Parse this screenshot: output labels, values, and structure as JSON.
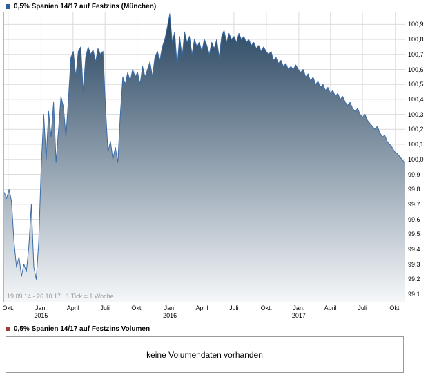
{
  "chart_data": {
    "type": "area",
    "title": "0,5% Spanien 14/17 auf Festzins (München)",
    "range_info": "19.09.14 - 26.10.17   1 Tick = 1 Woche",
    "line_color": "#3a6ca8",
    "marker_color": "#2d5e9e",
    "fill_top": "#24425e",
    "fill_bottom": "#f5f7f9",
    "grid_color": "#dcdcdc",
    "legend_position": "top-left",
    "grid": true,
    "ylim": [
      99.05,
      100.98
    ],
    "y_ticks": [
      "100,9",
      "100,8",
      "100,7",
      "100,6",
      "100,5",
      "100,4",
      "100,3",
      "100,2",
      "100,1",
      "100,0",
      "99,9",
      "99,8",
      "99,7",
      "99,6",
      "99,5",
      "99,4",
      "99,3",
      "99,2",
      "99,1"
    ],
    "x_ticks": [
      {
        "label": "Okt.",
        "pos": 0.01
      },
      {
        "label": "Jan.",
        "year": "2015",
        "pos": 0.092
      },
      {
        "label": "April",
        "pos": 0.172
      },
      {
        "label": "Juli",
        "pos": 0.252
      },
      {
        "label": "Okt.",
        "pos": 0.332
      },
      {
        "label": "Jan.",
        "year": "2016",
        "pos": 0.414
      },
      {
        "label": "April",
        "pos": 0.494
      },
      {
        "label": "Juli",
        "pos": 0.574
      },
      {
        "label": "Okt.",
        "pos": 0.655
      },
      {
        "label": "Jan.",
        "year": "2017",
        "pos": 0.736
      },
      {
        "label": "April",
        "pos": 0.815
      },
      {
        "label": "Juli",
        "pos": 0.895
      },
      {
        "label": "Okt.",
        "pos": 0.977
      }
    ],
    "values": [
      99.78,
      99.74,
      99.8,
      99.72,
      99.45,
      99.28,
      99.35,
      99.22,
      99.3,
      99.25,
      99.42,
      99.7,
      99.28,
      99.2,
      99.45,
      99.95,
      100.3,
      100.0,
      100.32,
      100.15,
      100.38,
      99.98,
      100.2,
      100.42,
      100.35,
      100.15,
      100.4,
      100.68,
      100.72,
      100.55,
      100.72,
      100.75,
      100.45,
      100.68,
      100.75,
      100.7,
      100.73,
      100.65,
      100.74,
      100.7,
      100.72,
      100.35,
      100.05,
      100.12,
      100.0,
      100.08,
      99.98,
      100.3,
      100.55,
      100.5,
      100.58,
      100.52,
      100.6,
      100.55,
      100.58,
      100.5,
      100.62,
      100.55,
      100.6,
      100.65,
      100.55,
      100.68,
      100.72,
      100.66,
      100.75,
      100.8,
      100.88,
      100.97,
      100.78,
      100.85,
      100.62,
      100.82,
      100.68,
      100.85,
      100.78,
      100.82,
      100.7,
      100.8,
      100.75,
      100.78,
      100.72,
      100.8,
      100.76,
      100.7,
      100.78,
      100.74,
      100.8,
      100.68,
      100.82,
      100.86,
      100.78,
      100.84,
      100.8,
      100.82,
      100.78,
      100.84,
      100.8,
      100.82,
      100.78,
      100.8,
      100.76,
      100.78,
      100.74,
      100.76,
      100.72,
      100.75,
      100.72,
      100.7,
      100.72,
      100.66,
      100.68,
      100.64,
      100.66,
      100.62,
      100.64,
      100.6,
      100.62,
      100.6,
      100.63,
      100.6,
      100.58,
      100.6,
      100.55,
      100.57,
      100.52,
      100.55,
      100.5,
      100.52,
      100.48,
      100.5,
      100.46,
      100.48,
      100.44,
      100.46,
      100.42,
      100.44,
      100.4,
      100.42,
      100.38,
      100.36,
      100.38,
      100.34,
      100.32,
      100.34,
      100.3,
      100.28,
      100.3,
      100.26,
      100.24,
      100.22,
      100.2,
      100.22,
      100.18,
      100.15,
      100.16,
      100.12,
      100.1,
      100.08,
      100.05,
      100.04,
      100.02,
      100.0,
      99.98
    ]
  },
  "volume": {
    "label": "0,5% Spanien 14/17 auf Festzins Volumen",
    "marker_color": "#a33a3a",
    "message": "keine Volumendaten vorhanden"
  }
}
